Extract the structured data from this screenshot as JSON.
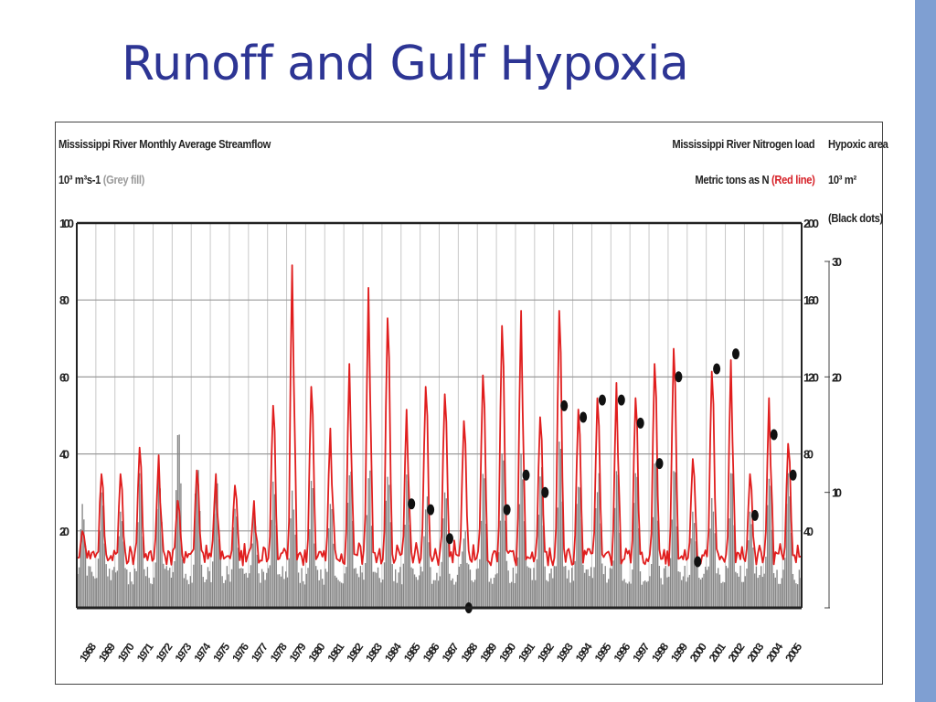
{
  "slide": {
    "title": "Runoff and Gulf Hypoxia",
    "accent_color": "#7f9fd2",
    "title_color": "#2d3594"
  },
  "chart_data": {
    "type": "line",
    "headers": {
      "streamflow_title": "Mississippi River Monthly Average Streamflow",
      "streamflow_units": "10³ m³s-1",
      "streamflow_note": "(Grey fill)",
      "nitrogen_title": "Mississippi River Nitrogen load",
      "nitrogen_units": "Metric tons as N",
      "nitrogen_note": "(Red line)",
      "hypoxic_title": "Hypoxic area",
      "hypoxic_units": "10³ m²",
      "hypoxic_note": "(Black dots)"
    },
    "left_axis": {
      "ticks": [
        "100",
        "80",
        "60",
        "40",
        "20"
      ],
      "ylim": [
        0,
        100
      ]
    },
    "right_axis_nitrogen": {
      "ticks": [
        "200",
        "160",
        "120",
        "80",
        "40"
      ],
      "ylim": [
        0,
        200
      ]
    },
    "right_axis_hypoxia": {
      "ticks": [
        "30",
        "20",
        "10"
      ],
      "ylim": [
        0,
        30
      ]
    },
    "x_years": [
      "1968",
      "1969",
      "1970",
      "1971",
      "1972",
      "1973",
      "1974",
      "1975",
      "1976",
      "1977",
      "1978",
      "1979",
      "1980",
      "1981",
      "1982",
      "1983",
      "1984",
      "1985",
      "1986",
      "1987",
      "1988",
      "1989",
      "1990",
      "1991",
      "1992",
      "1993",
      "1994",
      "1995",
      "1996",
      "1997",
      "1998",
      "1999",
      "2000",
      "2001",
      "2002",
      "2003",
      "2004",
      "2005"
    ],
    "grid": true,
    "series": [
      {
        "name": "Mississippi River Nitrogen load",
        "kind": "line",
        "color": "#e02020",
        "annual_peak_metric_tons": [
          40,
          70,
          70,
          84,
          80,
          56,
          72,
          70,
          64,
          56,
          106,
          180,
          116,
          94,
          128,
          168,
          152,
          104,
          116,
          112,
          98,
          122,
          148,
          156,
          100,
          156,
          104,
          110,
          118,
          110,
          128,
          136,
          78,
          124,
          130,
          70,
          110,
          86
        ]
      },
      {
        "name": "Mississippi River Monthly Average Streamflow",
        "kind": "area",
        "color": "#808080",
        "annual_peak_10e3_m3s": [
          27,
          30,
          25,
          35,
          35,
          55,
          40,
          35,
          30,
          25,
          35,
          33,
          33,
          27,
          40,
          40,
          40,
          35,
          30,
          30,
          20,
          35,
          40,
          40,
          38,
          45,
          38,
          35,
          40,
          35,
          40,
          40,
          25,
          30,
          35,
          25,
          35,
          35
        ]
      },
      {
        "name": "Hypoxic area",
        "kind": "scatter",
        "color": "#111111",
        "points": [
          {
            "year": 1985,
            "value": 9.0
          },
          {
            "year": 1986,
            "value": 8.5
          },
          {
            "year": 1987,
            "value": 6.0
          },
          {
            "year": 1988,
            "value": 0.0
          },
          {
            "year": 1990,
            "value": 8.5
          },
          {
            "year": 1991,
            "value": 11.5
          },
          {
            "year": 1992,
            "value": 10.0
          },
          {
            "year": 1993,
            "value": 17.5
          },
          {
            "year": 1994,
            "value": 16.5
          },
          {
            "year": 1995,
            "value": 18.0
          },
          {
            "year": 1996,
            "value": 18.0
          },
          {
            "year": 1997,
            "value": 16.0
          },
          {
            "year": 1998,
            "value": 12.5
          },
          {
            "year": 1999,
            "value": 20.0
          },
          {
            "year": 2000,
            "value": 4.0
          },
          {
            "year": 2001,
            "value": 20.7
          },
          {
            "year": 2002,
            "value": 22.0
          },
          {
            "year": 2003,
            "value": 8.0
          },
          {
            "year": 2004,
            "value": 15.0
          },
          {
            "year": 2005,
            "value": 11.5
          }
        ]
      }
    ]
  }
}
